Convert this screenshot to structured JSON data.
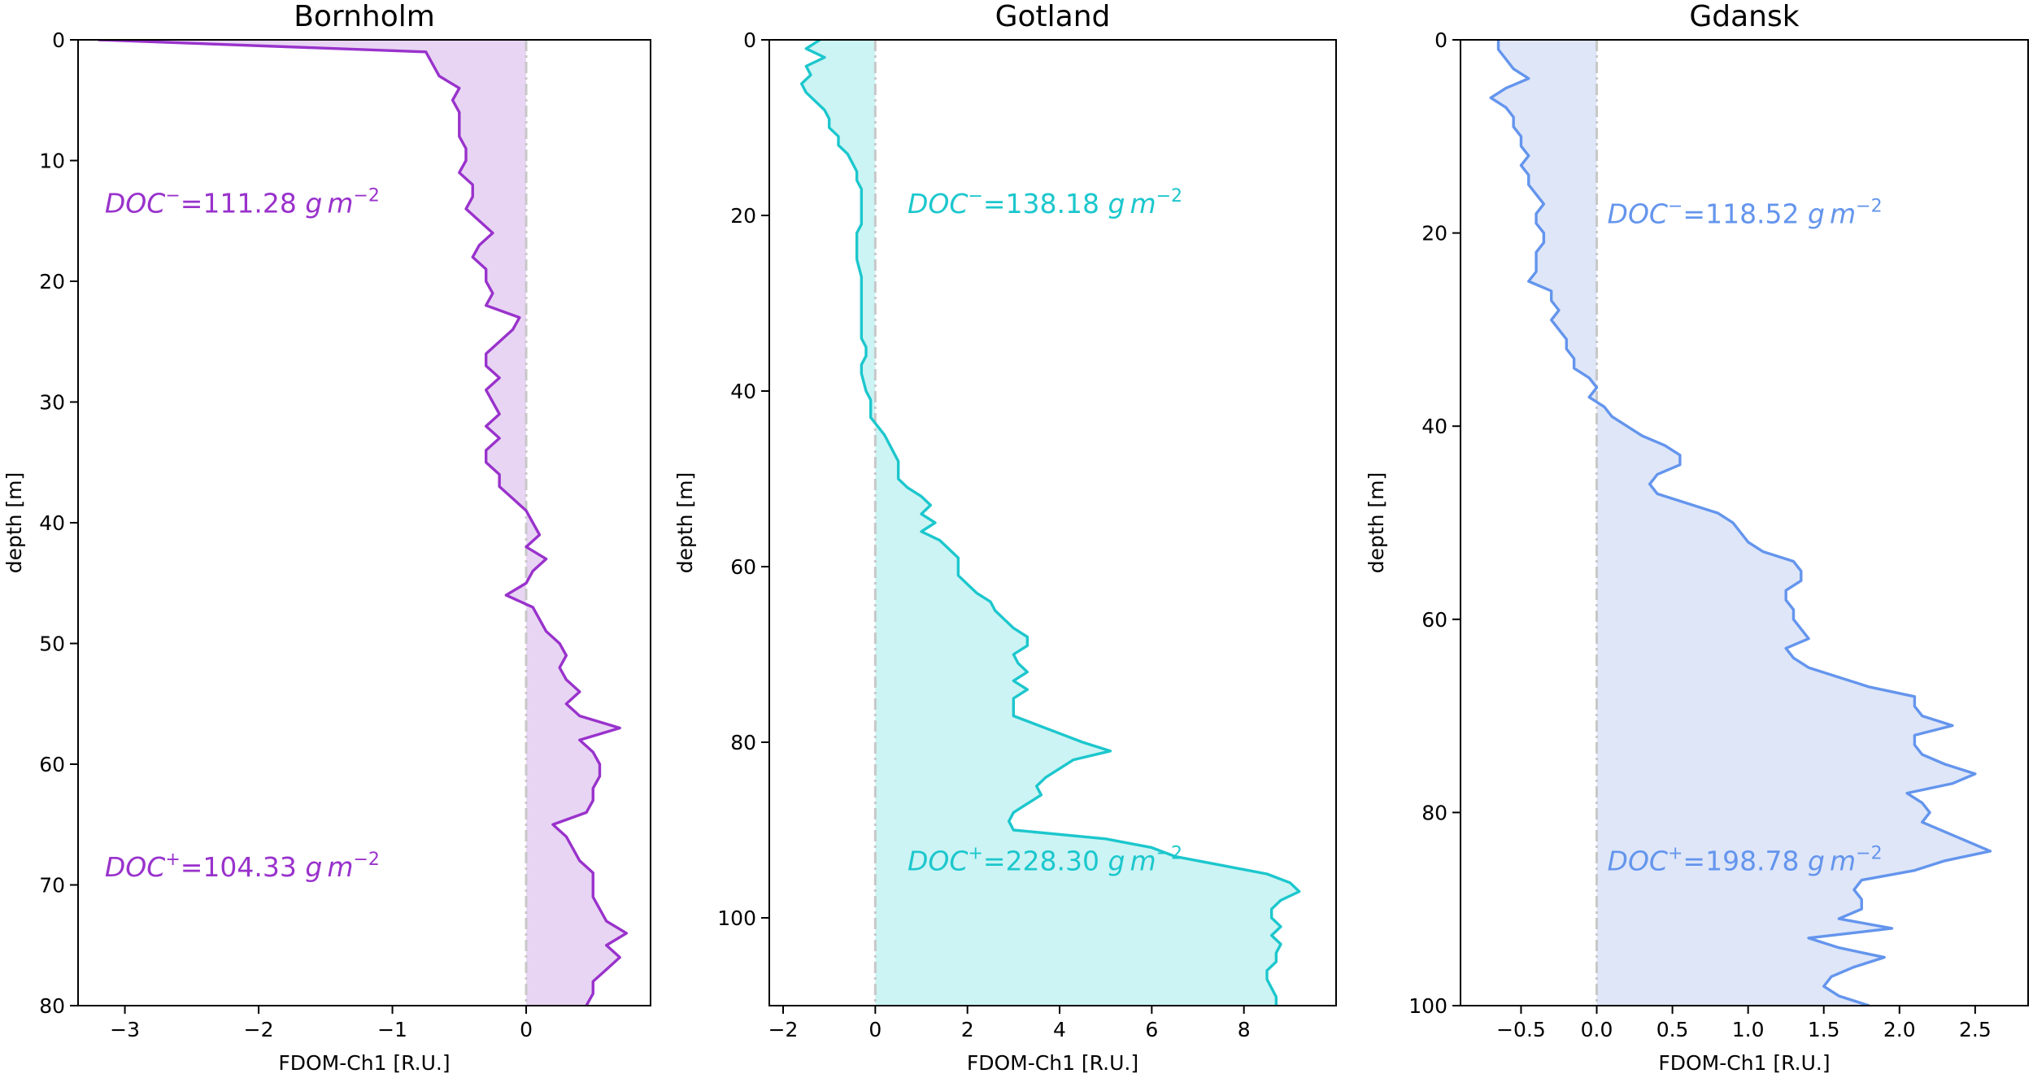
{
  "chart_data": [
    {
      "type": "line",
      "title": "Bornholm",
      "xlabel": "FDOM-Ch1 [R.U.]",
      "ylabel": "depth [m]",
      "xlim": [
        -3.35,
        0.93
      ],
      "ylim": [
        80,
        0
      ],
      "xticks": [
        -3,
        -2,
        -1,
        0
      ],
      "xtick_labels": [
        "−3",
        "−2",
        "−1",
        "0"
      ],
      "yticks": [
        0,
        10,
        20,
        30,
        40,
        50,
        60,
        70,
        80
      ],
      "ytick_labels": [
        "0",
        "10",
        "20",
        "30",
        "40",
        "50",
        "60",
        "70",
        "80"
      ],
      "color": "#9932CC",
      "fill_color": "#E8D5F3",
      "series": [
        {
          "x": [
            -3.2,
            -0.75,
            -0.7,
            -0.65,
            -0.5,
            -0.55,
            -0.5,
            -0.5,
            -0.5,
            -0.45,
            -0.45,
            -0.5,
            -0.4,
            -0.4,
            -0.45,
            -0.35,
            -0.25,
            -0.35,
            -0.4,
            -0.3,
            -0.3,
            -0.25,
            -0.3,
            -0.05,
            -0.1,
            -0.2,
            -0.3,
            -0.3,
            -0.2,
            -0.3,
            -0.25,
            -0.2,
            -0.3,
            -0.2,
            -0.3,
            -0.3,
            -0.2,
            -0.2,
            -0.1,
            0.0,
            0.05,
            0.1,
            0.0,
            0.15,
            0.05,
            0.0,
            -0.15,
            0.05,
            0.1,
            0.15,
            0.25,
            0.3,
            0.25,
            0.3,
            0.4,
            0.3,
            0.4,
            0.7,
            0.4,
            0.5,
            0.55,
            0.55,
            0.5,
            0.5,
            0.45,
            0.2,
            0.3,
            0.35,
            0.4,
            0.5,
            0.5,
            0.5,
            0.55,
            0.6,
            0.75,
            0.6,
            0.7,
            0.6,
            0.5,
            0.5,
            0.45
          ],
          "y": [
            0,
            1,
            2,
            3,
            4,
            5,
            6,
            7,
            8,
            9,
            10,
            11,
            12,
            13,
            14,
            15,
            16,
            17,
            18,
            19,
            20,
            21,
            22,
            23,
            24,
            25,
            26,
            27,
            28,
            29,
            30,
            31,
            32,
            33,
            34,
            35,
            36,
            37,
            38,
            39,
            40,
            41,
            42,
            43,
            44,
            45,
            46,
            47,
            48,
            49,
            50,
            51,
            52,
            53,
            54,
            55,
            56,
            57,
            58,
            59,
            60,
            61,
            62,
            63,
            64,
            65,
            66,
            67,
            68,
            69,
            70,
            71,
            72,
            73,
            74,
            75,
            76,
            77,
            78,
            79,
            80
          ]
        }
      ],
      "annotations": [
        {
          "prefix": "DOC",
          "sup": "−",
          "text": "=111.28 ",
          "unit": "g",
          "unit_tail": "m",
          "unit_sup": "−2",
          "x": -3.15,
          "y": 14.3
        },
        {
          "prefix": "DOC",
          "sup": "+",
          "text": "=104.33 ",
          "unit": "g",
          "unit_tail": "m",
          "unit_sup": "−2",
          "x": -3.15,
          "y": 69.3
        }
      ]
    },
    {
      "type": "line",
      "title": "Gotland",
      "xlabel": "FDOM-Ch1 [R.U.]",
      "ylabel": "depth [m]",
      "xlim": [
        -2.3,
        10.0
      ],
      "ylim": [
        110,
        0
      ],
      "xticks": [
        -2,
        0,
        2,
        4,
        6,
        8
      ],
      "xtick_labels": [
        "−2",
        "0",
        "2",
        "4",
        "6",
        "8"
      ],
      "yticks": [
        0,
        20,
        40,
        60,
        80,
        100
      ],
      "ytick_labels": [
        "0",
        "20",
        "40",
        "60",
        "80",
        "100"
      ],
      "color": "#1CC7CD",
      "fill_color": "#CCF4F4",
      "series": [
        {
          "x": [
            -1.2,
            -1.5,
            -1.1,
            -1.5,
            -1.4,
            -1.6,
            -1.5,
            -1.3,
            -1.1,
            -1.0,
            -1.0,
            -0.8,
            -0.8,
            -0.6,
            -0.5,
            -0.4,
            -0.4,
            -0.3,
            -0.3,
            -0.3,
            -0.3,
            -0.3,
            -0.4,
            -0.4,
            -0.4,
            -0.4,
            -0.35,
            -0.3,
            -0.3,
            -0.3,
            -0.3,
            -0.3,
            -0.3,
            -0.3,
            -0.3,
            -0.2,
            -0.2,
            -0.3,
            -0.3,
            -0.25,
            -0.2,
            -0.1,
            -0.1,
            -0.1,
            0.05,
            0.2,
            0.3,
            0.4,
            0.5,
            0.5,
            0.5,
            0.7,
            1.0,
            1.2,
            1.0,
            1.3,
            1.0,
            1.4,
            1.6,
            1.8,
            1.8,
            1.8,
            2.0,
            2.2,
            2.5,
            2.6,
            2.8,
            3.0,
            3.3,
            3.3,
            3.0,
            3.1,
            3.3,
            3.0,
            3.3,
            3.0,
            3.0,
            3.0,
            3.5,
            4.0,
            4.5,
            5.1,
            4.3,
            4.0,
            3.7,
            3.5,
            3.6,
            3.3,
            3.0,
            2.9,
            3.0,
            5.0,
            6.0,
            6.5,
            7.5,
            8.5,
            9.0,
            9.2,
            8.8,
            8.6,
            8.6,
            8.8,
            8.6,
            8.8,
            8.7,
            8.7,
            8.5,
            8.5,
            8.6,
            8.7,
            8.7
          ],
          "y": [
            0,
            1,
            2,
            3,
            4,
            5,
            6,
            7,
            8,
            9,
            10,
            11,
            12,
            13,
            14,
            15,
            16,
            17,
            18,
            19,
            20,
            21,
            22,
            23,
            24,
            25,
            26,
            27,
            28,
            29,
            30,
            31,
            32,
            33,
            34,
            35,
            36,
            37,
            38,
            39,
            40,
            41,
            42,
            43,
            44,
            45,
            46,
            47,
            48,
            49,
            50,
            51,
            52,
            53,
            54,
            55,
            56,
            57,
            58,
            59,
            60,
            61,
            62,
            63,
            64,
            65,
            66,
            67,
            68,
            69,
            70,
            71,
            72,
            73,
            74,
            75,
            76,
            77,
            78,
            79,
            80,
            81,
            82,
            83,
            84,
            85,
            86,
            87,
            88,
            89,
            90,
            91,
            92,
            93,
            94,
            95,
            96,
            97,
            98,
            99,
            100,
            101,
            102,
            103,
            104,
            105,
            106,
            107,
            108,
            109,
            110
          ]
        }
      ],
      "annotations": [
        {
          "prefix": "DOC",
          "sup": "−",
          "text": "=138.18 ",
          "unit": "g",
          "unit_tail": "m",
          "unit_sup": "−2",
          "x": 0.7,
          "y": 19.7
        },
        {
          "prefix": "DOC",
          "sup": "+",
          "text": "=228.30 ",
          "unit": "g",
          "unit_tail": "m",
          "unit_sup": "−2",
          "x": 0.7,
          "y": 94.6
        }
      ]
    },
    {
      "type": "line",
      "title": "Gdansk",
      "xlabel": "FDOM-Ch1 [R.U.]",
      "ylabel": "depth [m]",
      "xlim": [
        -0.9,
        2.85
      ],
      "ylim": [
        100,
        0
      ],
      "xticks": [
        -0.5,
        0.0,
        0.5,
        1.0,
        1.5,
        2.0,
        2.5
      ],
      "xtick_labels": [
        "−0.5",
        "0.0",
        "0.5",
        "1.0",
        "1.5",
        "2.0",
        "2.5"
      ],
      "yticks": [
        0,
        20,
        40,
        60,
        80,
        100
      ],
      "ytick_labels": [
        "0",
        "20",
        "40",
        "60",
        "80",
        "100"
      ],
      "color": "#6495ED",
      "fill_color": "#DEE6F8",
      "series": [
        {
          "x": [
            -0.65,
            -0.65,
            -0.6,
            -0.55,
            -0.45,
            -0.6,
            -0.7,
            -0.6,
            -0.55,
            -0.55,
            -0.5,
            -0.5,
            -0.45,
            -0.5,
            -0.45,
            -0.45,
            -0.4,
            -0.35,
            -0.4,
            -0.4,
            -0.35,
            -0.35,
            -0.4,
            -0.4,
            -0.4,
            -0.45,
            -0.3,
            -0.3,
            -0.25,
            -0.3,
            -0.25,
            -0.2,
            -0.2,
            -0.15,
            -0.15,
            -0.05,
            0.0,
            -0.05,
            0.05,
            0.1,
            0.2,
            0.3,
            0.45,
            0.55,
            0.55,
            0.4,
            0.35,
            0.4,
            0.6,
            0.8,
            0.9,
            0.95,
            1.0,
            1.1,
            1.3,
            1.35,
            1.35,
            1.25,
            1.25,
            1.3,
            1.3,
            1.35,
            1.4,
            1.25,
            1.3,
            1.4,
            1.6,
            1.8,
            2.1,
            2.1,
            2.15,
            2.35,
            2.1,
            2.1,
            2.15,
            2.3,
            2.5,
            2.35,
            2.05,
            2.15,
            2.2,
            2.15,
            2.3,
            2.45,
            2.6,
            2.3,
            2.1,
            1.75,
            1.7,
            1.75,
            1.75,
            1.6,
            1.95,
            1.4,
            1.6,
            1.9,
            1.7,
            1.55,
            1.5,
            1.6,
            1.8
          ],
          "y": [
            0,
            1,
            2,
            3,
            4,
            5,
            6,
            7,
            8,
            9,
            10,
            11,
            12,
            13,
            14,
            15,
            16,
            17,
            18,
            19,
            20,
            21,
            22,
            23,
            24,
            25,
            26,
            27,
            28,
            29,
            30,
            31,
            32,
            33,
            34,
            35,
            36,
            37,
            38,
            39,
            40,
            41,
            42,
            43,
            44,
            45,
            46,
            47,
            48,
            49,
            50,
            51,
            52,
            53,
            54,
            55,
            56,
            57,
            58,
            59,
            60,
            61,
            62,
            63,
            64,
            65,
            66,
            67,
            68,
            69,
            70,
            71,
            72,
            73,
            74,
            75,
            76,
            77,
            78,
            79,
            80,
            81,
            82,
            83,
            84,
            85,
            86,
            87,
            88,
            89,
            90,
            91,
            92,
            93,
            94,
            95,
            96,
            97,
            98,
            99,
            100
          ]
        }
      ],
      "annotations": [
        {
          "prefix": "DOC",
          "sup": "−",
          "text": "=118.52 ",
          "unit": "g",
          "unit_tail": "m",
          "unit_sup": "−2",
          "x": 0.07,
          "y": 19.0
        },
        {
          "prefix": "DOC",
          "sup": "+",
          "text": "=198.78 ",
          "unit": "g",
          "unit_tail": "m",
          "unit_sup": "−2",
          "x": 0.07,
          "y": 86.0
        }
      ]
    }
  ]
}
